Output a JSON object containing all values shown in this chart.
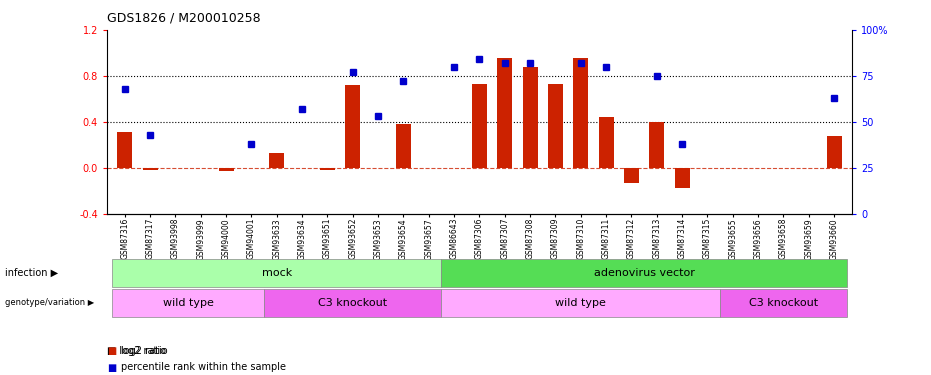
{
  "title": "GDS1826 / M200010258",
  "samples": [
    "GSM87316",
    "GSM87317",
    "GSM93998",
    "GSM93999",
    "GSM94000",
    "GSM94001",
    "GSM93633",
    "GSM93634",
    "GSM93651",
    "GSM93652",
    "GSM93653",
    "GSM93654",
    "GSM93657",
    "GSM86643",
    "GSM87306",
    "GSM87307",
    "GSM87308",
    "GSM87309",
    "GSM87310",
    "GSM87311",
    "GSM87312",
    "GSM87313",
    "GSM87314",
    "GSM87315",
    "GSM93655",
    "GSM93656",
    "GSM93658",
    "GSM93659",
    "GSM93660"
  ],
  "log2_ratio": [
    0.31,
    -0.02,
    0.0,
    0.0,
    -0.03,
    0.0,
    0.13,
    0.0,
    -0.02,
    0.72,
    0.0,
    0.38,
    0.0,
    0.0,
    0.73,
    0.96,
    0.88,
    0.73,
    0.96,
    0.44,
    -0.13,
    0.4,
    -0.18,
    0.0,
    0.0,
    0.0,
    0.0,
    0.0,
    0.28
  ],
  "percentile": [
    68,
    43,
    0,
    0,
    0,
    38,
    0,
    57,
    0,
    77,
    53,
    72,
    0,
    80,
    84,
    82,
    82,
    0,
    82,
    80,
    0,
    75,
    38,
    0,
    0,
    0,
    0,
    0,
    63
  ],
  "infection_groups": [
    {
      "label": "mock",
      "start": 0,
      "end": 12,
      "color": "#aaffaa"
    },
    {
      "label": "adenovirus vector",
      "start": 13,
      "end": 28,
      "color": "#55dd55"
    }
  ],
  "genotype_groups": [
    {
      "label": "wild type",
      "start": 0,
      "end": 5,
      "color": "#ffaaff"
    },
    {
      "label": "C3 knockout",
      "start": 6,
      "end": 12,
      "color": "#ee66ee"
    },
    {
      "label": "wild type",
      "start": 13,
      "end": 23,
      "color": "#ffaaff"
    },
    {
      "label": "C3 knockout",
      "start": 24,
      "end": 28,
      "color": "#ee66ee"
    }
  ],
  "bar_color": "#cc2200",
  "dot_color": "#0000cc",
  "ylim_left": [
    -0.4,
    1.2
  ],
  "ylim_right": [
    0,
    100
  ],
  "yticks_left": [
    -0.4,
    0.0,
    0.4,
    0.8,
    1.2
  ],
  "yticks_right": [
    0,
    25,
    50,
    75,
    100
  ],
  "infection_label": "infection",
  "genotype_label": "genotype/variation",
  "legend_red": "log2 ratio",
  "legend_blue": "percentile rank within the sample"
}
